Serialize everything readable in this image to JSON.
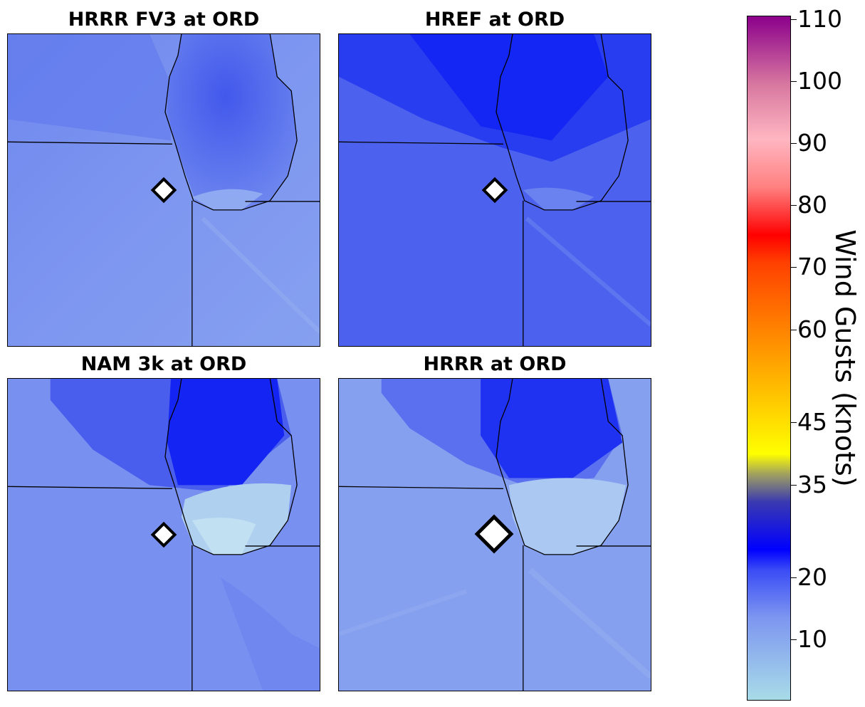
{
  "panels": [
    {
      "title": "HRRR FV3 at ORD",
      "scheme": "fv3"
    },
    {
      "title": "HREF at ORD",
      "scheme": "href"
    },
    {
      "title": "NAM 3k at ORD",
      "scheme": "nam"
    },
    {
      "title": "HRRR at ORD",
      "scheme": "hrrr"
    }
  ],
  "colorbar": {
    "label": "Wind Gusts (knots)",
    "ticks": [
      "110",
      "100",
      "90",
      "80",
      "70",
      "60",
      "45",
      "35",
      "20",
      "10"
    ],
    "colors": {
      "low": "#a8dce8",
      "mid_blue": "#3a4cf5",
      "blue": "#0000ff",
      "olive": "#b0b020",
      "yellow": "#ffff00",
      "orange": "#ff9800",
      "red": "#ff0000",
      "pink": "#ffb6c1",
      "purple": "#8b008b"
    }
  },
  "map_colors": {
    "light": "#8fa8f0",
    "medium": "#5a70ee",
    "dark": "#1a28f2",
    "border": "#000000",
    "marker_fill": "#ffffff",
    "marker_stroke": "#000000"
  },
  "marker": {
    "label": "ORD",
    "icon": "diamond-marker-icon"
  }
}
